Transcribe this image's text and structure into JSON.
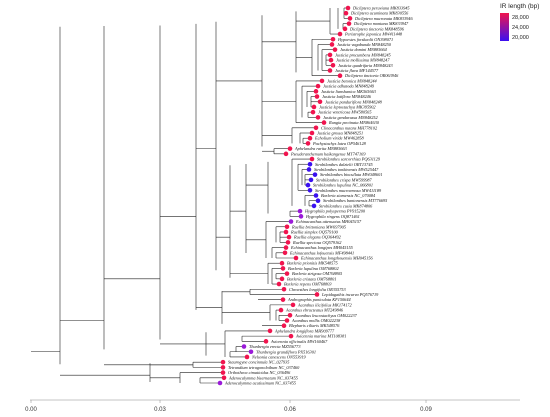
{
  "legend": {
    "title": "IR length (bp)",
    "ticks": [
      "28,000",
      "24,000",
      "20,000"
    ],
    "colors": {
      "high": "#f0144e",
      "low": "#3a10f0"
    }
  },
  "axis": {
    "ticks": [
      {
        "value": 0.0,
        "label": "0.00"
      },
      {
        "value": 0.03,
        "label": "0.03"
      },
      {
        "value": 0.06,
        "label": "0.06"
      },
      {
        "value": 0.09,
        "label": "0.09"
      }
    ]
  },
  "taxa": [
    "Dicliptera peruviana MK833945",
    "Dicliptera acuminata MK830556",
    "Dicliptera mucronata MK833946",
    "Dicliptera montana MK833947",
    "Dicliptera tinctoria MK848596",
    "Peristrophe japonica MW411448",
    "Hypoestes forskaolii ON398071",
    "Justicia vagabunda MN848250",
    "Justicia domini MN885664",
    "Justicia procumbens MN848245",
    "Justicia mollissima MN848247",
    "Justicia quadrifaria MN848243",
    "Justicia flava MF144577",
    "Dicliptera tinctoria OR063946",
    "Justicia betonica MN848244",
    "Justicia adhatoda MN848249",
    "Justicia lianshanica MK565663",
    "Justicia latiflora MN848246",
    "Justicia panduriflora MN848248",
    "Justicia leptostachya MK395902",
    "Justicia ventricosa MW580565",
    "Justicia gendarussa MN848252",
    "Rungia pectinata MN864630",
    "Clinacanthus nutans MH778102",
    "Justicia grossa MN848251",
    "Echolium viride MW462858",
    "Pachystachys lutea OP546128",
    "Aphelandra rarita MN885663",
    "Pseuderanthemum haikangense MT747169",
    "Strobilanthes sarcorrhiza PQ631129",
    "Strobilanthes dalzielii ORT13745",
    "Strobilanthes tonkinensis MW525447",
    "Strobilanthes biocullata MW048601",
    "Strobilanthes crispa MW599987",
    "Strobilanthes lupulina NC_066801",
    "Strobilanthes mucroemosa MW411189",
    "Barleria siamensis NC_070084",
    "Strobilanthes bantonensis MT776695",
    "Strobilanthes cusia MK874806",
    "Hygrophila polysperma PV915200",
    "Hygrophila ringens OQ871461",
    "Echinacanthus attenuatus MH045157",
    "Ruellia brittoniana MW697905",
    "Ruellia simplex OQ579100",
    "Ruellia elegans OQ364492",
    "Ruellia speciosa OQ579162",
    "Echinacanthus longipes MH045155",
    "Echinacanthus lofouensis MF498441",
    "Echinacanthus longzhouensis MH045156",
    "Barleria prionitis MK548575",
    "Barleria lupulina OM768802",
    "Barleria strigosa OM768805",
    "Barleria cristata OM768801",
    "Barleria repens OM768803",
    "Chroesthes longifolia OR355753",
    "Lepidagathis incurva PQ576719",
    "Andrographis paniculata KF150644",
    "Acanthus ilicifolius MK174172",
    "Acanthus ebracteatus MT249846",
    "Acanthus leucostachyus OM022237",
    "Acanthus mollis OM022238",
    "Blepharis ciliaris MK548576",
    "Aphelandra longiflora MH909777",
    "Avicennia marina MT108381",
    "Avicennia officinalis MW160467",
    "Thunbergia erecta MZ556773",
    "Thunbergia grandiflora PX516301",
    "Nelsonia canescens ON553919",
    "Staurogyne concinnula NC_027935",
    "Tetrandium tetragonoloibum NC_037460",
    "Orthotheca cimaticidus NC_036496",
    "Adenocalymma bisernatum NC_037455",
    "Adenocalymma acutissimum NC_037455"
  ]
}
